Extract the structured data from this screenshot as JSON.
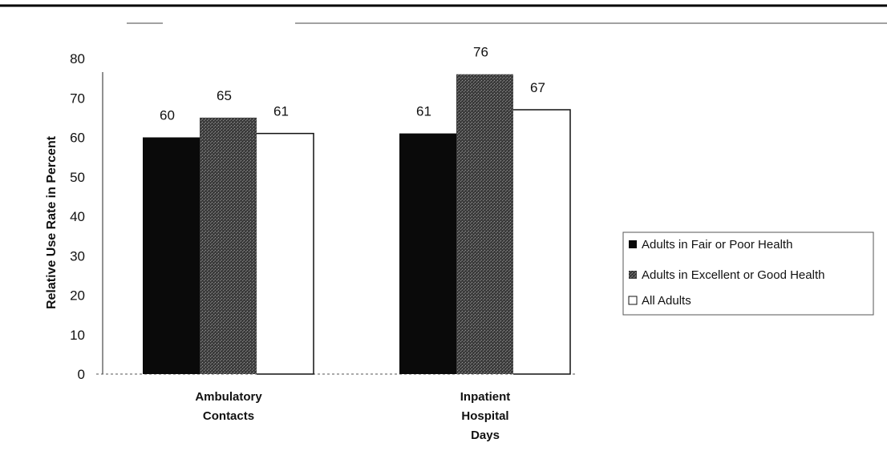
{
  "chart_data": {
    "type": "bar",
    "title": "",
    "xlabel": "",
    "ylabel": "Relative Use Rate in Percent",
    "ylim": [
      0,
      80
    ],
    "yticks": [
      "0",
      "10",
      "20",
      "30",
      "40",
      "50",
      "60",
      "70",
      "80"
    ],
    "categories": [
      "Ambulatory\nContacts",
      "Inpatient\nHospital\nDays"
    ],
    "series": [
      {
        "name": "Adults in Fair or Poor Health",
        "values": [
          60,
          61
        ],
        "labels": [
          "60",
          "61"
        ],
        "color": "#0a0a0a"
      },
      {
        "name": "Adults in Excellent or Good Health",
        "values": [
          65,
          76
        ],
        "labels": [
          "65",
          "76"
        ],
        "color": "#4a4a4a"
      },
      {
        "name": "All Adults",
        "values": [
          61,
          67
        ],
        "labels": [
          "61",
          "67"
        ],
        "color": "#ffffff"
      }
    ],
    "grid": false,
    "legend_position": "right"
  }
}
